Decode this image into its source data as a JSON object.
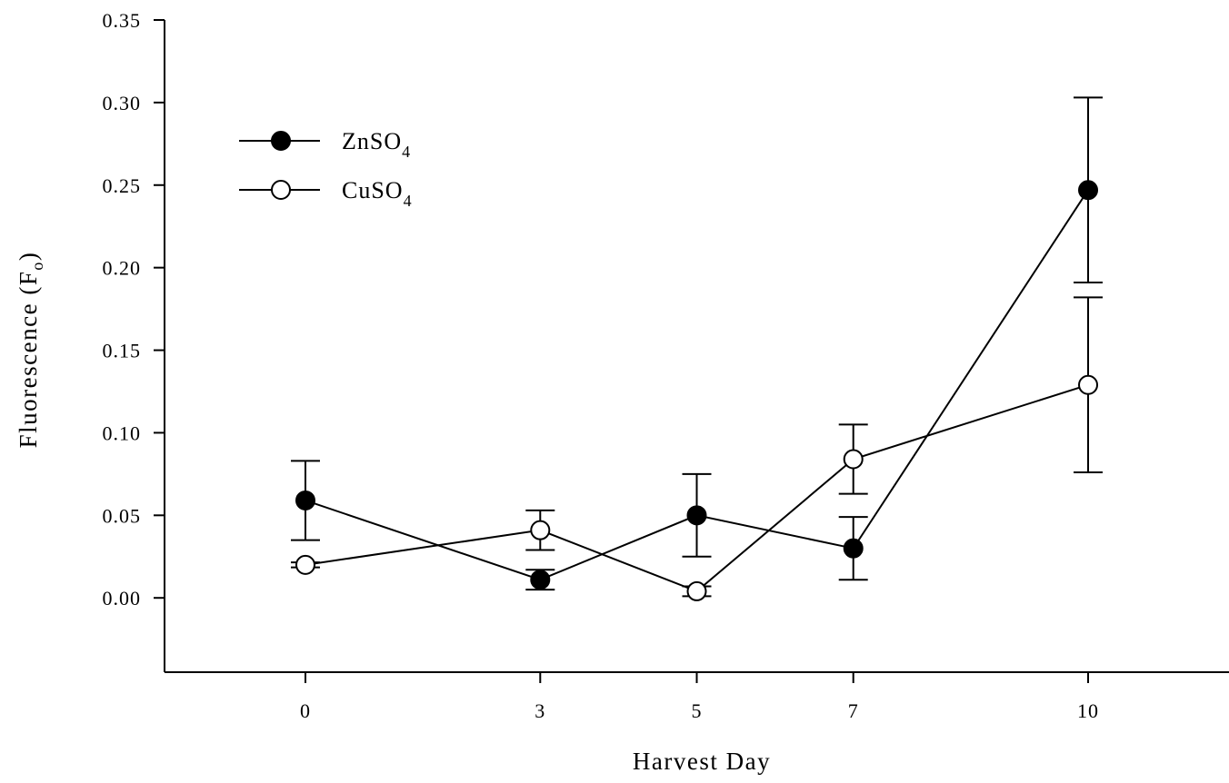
{
  "chart_data": {
    "type": "line",
    "xlabel": "Harvest Day",
    "ylabel": "Fluorescence (F",
    "ylabel_subscript": "o",
    "ylabel_suffix": ")",
    "x_ticks": [
      0,
      3,
      5,
      7,
      10
    ],
    "x_tick_labels": [
      "0",
      "3",
      "5",
      "7",
      "10"
    ],
    "y_ticks": [
      0.0,
      0.05,
      0.1,
      0.15,
      0.2,
      0.25,
      0.3,
      0.35
    ],
    "y_tick_labels": [
      "0.00",
      "0.05",
      "0.10",
      "0.15",
      "0.20",
      "0.25",
      "0.30",
      "0.35"
    ],
    "xlim": [
      -1.8,
      11.8
    ],
    "ylim": [
      -0.045,
      0.35
    ],
    "grid": false,
    "legend_position": "top-left",
    "series": [
      {
        "name": "ZnSO",
        "name_subscript": "4",
        "marker": "filled-circle",
        "x": [
          0,
          3,
          5,
          7,
          10
        ],
        "y": [
          0.059,
          0.011,
          0.05,
          0.03,
          0.247
        ],
        "err": [
          0.024,
          0.006,
          0.025,
          0.019,
          0.056
        ]
      },
      {
        "name": "CuSO",
        "name_subscript": "4",
        "marker": "open-circle",
        "x": [
          0,
          3,
          5,
          7,
          10
        ],
        "y": [
          0.02,
          0.041,
          0.004,
          0.084,
          0.129
        ],
        "err": [
          0.0015,
          0.012,
          0.003,
          0.021,
          0.053
        ]
      }
    ]
  }
}
